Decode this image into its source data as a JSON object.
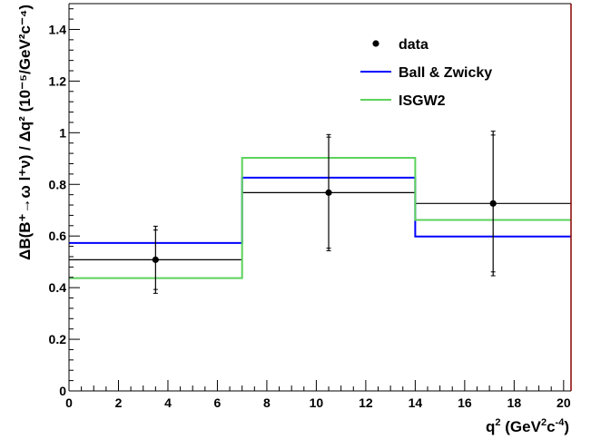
{
  "chart_data": {
    "type": "line",
    "xlabel": "q",
    "xlabel_sup1": "2",
    "xlabel_rest": " (GeV",
    "xlabel_sup2": "2",
    "xlabel_c": "c",
    "xlabel_sup3": "-4",
    "xlabel_close": ")",
    "ylabel": "ΔB(B⁺→ω l⁺ν) / Δq² (10⁻⁵/GeV²c⁻⁴)",
    "xlim": [
      0,
      20.3
    ],
    "ylim": [
      0,
      1.5
    ],
    "x_ticks": [
      "0",
      "2",
      "4",
      "6",
      "8",
      "10",
      "12",
      "14",
      "16",
      "18",
      "20"
    ],
    "y_ticks": [
      "0",
      "0.2",
      "0.4",
      "0.6",
      "0.8",
      "1",
      "1.2",
      "1.4"
    ],
    "bin_edges": [
      0,
      7,
      14,
      20.3
    ],
    "legend": {
      "position": "top-right",
      "entries": [
        "data",
        "Ball & Zwicky",
        "ISGW2"
      ]
    },
    "series": [
      {
        "name": "data",
        "kind": "points",
        "color": "#000000",
        "x": [
          3.5,
          10.5,
          17.15
        ],
        "y": [
          0.508,
          0.768,
          0.726
        ],
        "err_stat": [
          0.115,
          0.215,
          0.265
        ],
        "err_tot": [
          0.13,
          0.225,
          0.28
        ]
      },
      {
        "name": "data",
        "kind": "histogram",
        "color": "#000000",
        "values": [
          0.508,
          0.768,
          0.726
        ]
      },
      {
        "name": "Ball & Zwicky",
        "kind": "histogram",
        "color": "#0000ff",
        "values": [
          0.573,
          0.826,
          0.598
        ]
      },
      {
        "name": "ISGW2",
        "kind": "histogram",
        "color": "#5cd25c",
        "values": [
          0.437,
          0.903,
          0.662
        ]
      }
    ]
  }
}
